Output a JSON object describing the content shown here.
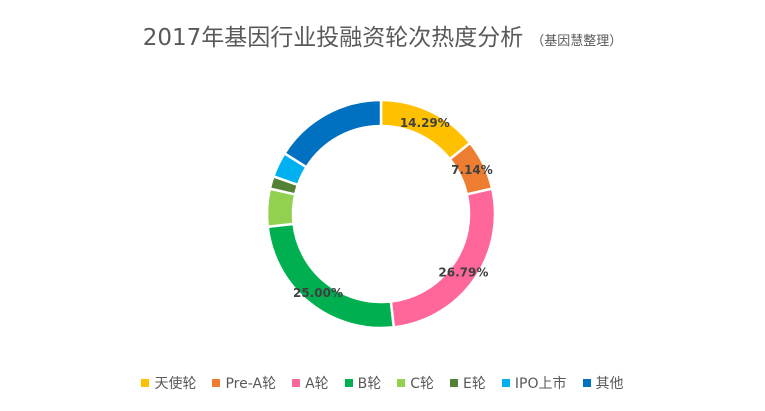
{
  "title": {
    "main": "2017年基因行业投融资轮次热度分析",
    "sub": "（基因慧整理）"
  },
  "chart_data": {
    "type": "pie",
    "donut": true,
    "legend_position": "bottom",
    "categories": [
      "天使轮",
      "Pre-A轮",
      "A轮",
      "B轮",
      "C轮",
      "E轮",
      "IPO上市",
      "其他"
    ],
    "values": [
      14.29,
      7.14,
      26.79,
      25.0,
      5.36,
      1.79,
      3.57,
      16.07
    ],
    "labels": [
      "14.29%",
      "7.14%",
      "26.79%",
      "25.00%",
      "",
      "",
      "",
      ""
    ],
    "colors": [
      "#FFC000",
      "#ED7D31",
      "#FF6699",
      "#00B050",
      "#92D050",
      "#548235",
      "#00B0F0",
      "#0070C0"
    ]
  }
}
